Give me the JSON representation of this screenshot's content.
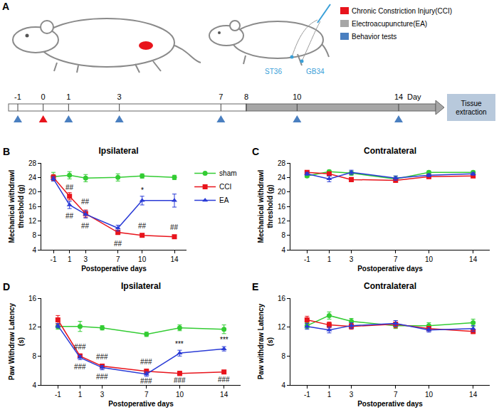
{
  "panel_a": {
    "label": "A",
    "legend": [
      {
        "key": "cci",
        "text": "Chronic Constriction Injury(CCI)",
        "color": "#e8141c"
      },
      {
        "key": "ea",
        "text": "Electroacupuncture(EA)",
        "color": "#a6a6a6"
      },
      {
        "key": "behavior",
        "text": "Behavior tests",
        "color": "#4a7fc0"
      }
    ],
    "acupoints": [
      "ST36",
      "GB34"
    ],
    "timeline": {
      "days": [
        -1,
        0,
        1,
        3,
        7,
        8,
        10,
        14
      ],
      "unit": "Day",
      "ea_from": 8,
      "cci_days": [
        0
      ],
      "behavior_days": [
        -1,
        1,
        3,
        7,
        10,
        14
      ],
      "end_label": "Tissue extraction"
    }
  },
  "chart_data": [
    {
      "label": "B",
      "type": "line",
      "title": "Ipsilateral",
      "x_label": "Postoperative days",
      "y_label": "Mechanical withdrawl threshold (g)",
      "x": [
        -1,
        1,
        3,
        7,
        10,
        14
      ],
      "xlim": [
        -2.5,
        15.5
      ],
      "xticks": [
        -1,
        1,
        3,
        7,
        10,
        14
      ],
      "ylim": [
        4,
        28
      ],
      "yticks": [
        4,
        8,
        12,
        16,
        20,
        24,
        28
      ],
      "grid": false,
      "legend": "right",
      "series": [
        {
          "name": "sham",
          "color": "#33cc33",
          "marker": "circle",
          "values": [
            24.2,
            24.6,
            23.8,
            24.0,
            24.4,
            24.0
          ],
          "errors": [
            1.2,
            1.0,
            1.0,
            1.0,
            0.6,
            0.6
          ]
        },
        {
          "name": "CCI",
          "color": "#e8141c",
          "marker": "square",
          "values": [
            24.0,
            18.8,
            14.0,
            8.8,
            8.0,
            7.6
          ],
          "errors": [
            0.8,
            1.0,
            1.0,
            0.6,
            0.4,
            0.4
          ]
        },
        {
          "name": "EA",
          "color": "#2a3bd6",
          "marker": "triangle-up",
          "values": [
            23.6,
            16.4,
            13.8,
            10.0,
            17.6,
            17.6
          ],
          "errors": [
            0.6,
            1.0,
            1.0,
            0.8,
            1.2,
            1.8
          ]
        }
      ],
      "annotations": [
        {
          "x": 1,
          "y": 21.2,
          "text": "##"
        },
        {
          "x": 1,
          "y": 13.4,
          "text": "##"
        },
        {
          "x": 3,
          "y": 17.2,
          "text": "##"
        },
        {
          "x": 3,
          "y": 10.6,
          "text": "##"
        },
        {
          "x": 7,
          "y": 5.6,
          "text": "##"
        },
        {
          "x": 10,
          "y": 20.4,
          "text": "*"
        },
        {
          "x": 10,
          "y": 10.6,
          "text": "##"
        },
        {
          "x": 14,
          "y": 10.2,
          "text": "##"
        }
      ]
    },
    {
      "label": "C",
      "type": "line",
      "title": "Contralateral",
      "x_label": "Postoperative days",
      "y_label": "Mechanical withdrawl threshold (g)",
      "x": [
        -1,
        1,
        3,
        7,
        10,
        14
      ],
      "xlim": [
        -2.5,
        15.5
      ],
      "xticks": [
        -1,
        1,
        3,
        7,
        10,
        14
      ],
      "ylim": [
        4,
        28
      ],
      "yticks": [
        4,
        8,
        12,
        16,
        20,
        24,
        28
      ],
      "grid": false,
      "series": [
        {
          "name": "sham",
          "color": "#33cc33",
          "marker": "circle",
          "values": [
            24.4,
            25.6,
            25.2,
            23.6,
            25.4,
            25.4
          ],
          "errors": [
            0.4,
            0.4,
            0.6,
            0.8,
            0.4,
            0.4
          ]
        },
        {
          "name": "CCI",
          "color": "#e8141c",
          "marker": "square",
          "values": [
            25.4,
            25.0,
            23.4,
            23.2,
            24.2,
            24.4
          ],
          "errors": [
            0.4,
            0.4,
            0.6,
            0.6,
            0.4,
            0.4
          ]
        },
        {
          "name": "EA",
          "color": "#2a3bd6",
          "marker": "triangle-up",
          "values": [
            25.0,
            23.6,
            25.4,
            23.8,
            24.6,
            25.0
          ],
          "errors": [
            0.4,
            0.8,
            0.6,
            0.6,
            0.4,
            0.4
          ]
        }
      ]
    },
    {
      "label": "D",
      "type": "line",
      "title": "Ipsilateral",
      "x_label": "Postoperative days",
      "y_label": "Paw Withdraw Latency (s)",
      "x": [
        -1,
        1,
        3,
        7,
        10,
        14
      ],
      "xlim": [
        -2.5,
        15.5
      ],
      "xticks": [
        -1,
        1,
        3,
        7,
        10,
        14
      ],
      "ylim": [
        4,
        16
      ],
      "yticks": [
        4,
        8,
        12,
        16
      ],
      "grid": false,
      "series": [
        {
          "name": "sham",
          "color": "#33cc33",
          "marker": "circle",
          "values": [
            12.1,
            12.1,
            11.9,
            11.0,
            11.9,
            11.7
          ],
          "errors": [
            0.4,
            0.7,
            0.3,
            0.3,
            0.4,
            0.6
          ]
        },
        {
          "name": "CCI",
          "color": "#e8141c",
          "marker": "square",
          "values": [
            13.0,
            8.0,
            6.6,
            5.9,
            5.6,
            5.8
          ],
          "errors": [
            0.6,
            0.3,
            0.3,
            0.3,
            0.3,
            0.2
          ]
        },
        {
          "name": "EA",
          "color": "#2a3bd6",
          "marker": "triangle-up",
          "values": [
            12.2,
            7.8,
            6.4,
            5.5,
            8.4,
            9.0
          ],
          "errors": [
            0.3,
            0.3,
            0.3,
            0.3,
            0.4,
            0.3
          ]
        }
      ],
      "annotations": [
        {
          "x": 1,
          "y": 9.3,
          "text": "###"
        },
        {
          "x": 1,
          "y": 6.5,
          "text": "###"
        },
        {
          "x": 3,
          "y": 7.9,
          "text": "###"
        },
        {
          "x": 3,
          "y": 5.1,
          "text": "###"
        },
        {
          "x": 7,
          "y": 7.2,
          "text": "###"
        },
        {
          "x": 7,
          "y": 4.5,
          "text": "###"
        },
        {
          "x": 10,
          "y": 9.7,
          "text": "***"
        },
        {
          "x": 10,
          "y": 4.6,
          "text": "###"
        },
        {
          "x": 14,
          "y": 10.2,
          "text": "***"
        },
        {
          "x": 14,
          "y": 4.7,
          "text": "###"
        }
      ]
    },
    {
      "label": "E",
      "type": "line",
      "title": "Contralateral",
      "x_label": "Postoperative days",
      "y_label": "Paw withdraw Latency (s)",
      "x": [
        -1,
        1,
        3,
        7,
        10,
        14
      ],
      "xlim": [
        -2.5,
        15.5
      ],
      "xticks": [
        -1,
        1,
        3,
        7,
        10,
        14
      ],
      "ylim": [
        4,
        16
      ],
      "yticks": [
        4,
        8,
        12,
        16
      ],
      "grid": false,
      "series": [
        {
          "name": "sham",
          "color": "#33cc33",
          "marker": "circle",
          "values": [
            12.2,
            13.6,
            12.8,
            12.2,
            12.2,
            12.6
          ],
          "errors": [
            0.4,
            0.5,
            0.4,
            0.4,
            0.4,
            0.5
          ]
        },
        {
          "name": "CCI",
          "color": "#e8141c",
          "marker": "square",
          "values": [
            13.0,
            12.3,
            12.1,
            12.4,
            11.8,
            11.4
          ],
          "errors": [
            0.5,
            0.4,
            0.4,
            0.5,
            0.3,
            0.3
          ]
        },
        {
          "name": "EA",
          "color": "#2a3bd6",
          "marker": "triangle-up",
          "values": [
            12.1,
            11.6,
            12.2,
            12.5,
            11.6,
            11.8
          ],
          "errors": [
            0.4,
            0.4,
            0.4,
            0.4,
            0.3,
            0.4
          ]
        }
      ]
    }
  ]
}
